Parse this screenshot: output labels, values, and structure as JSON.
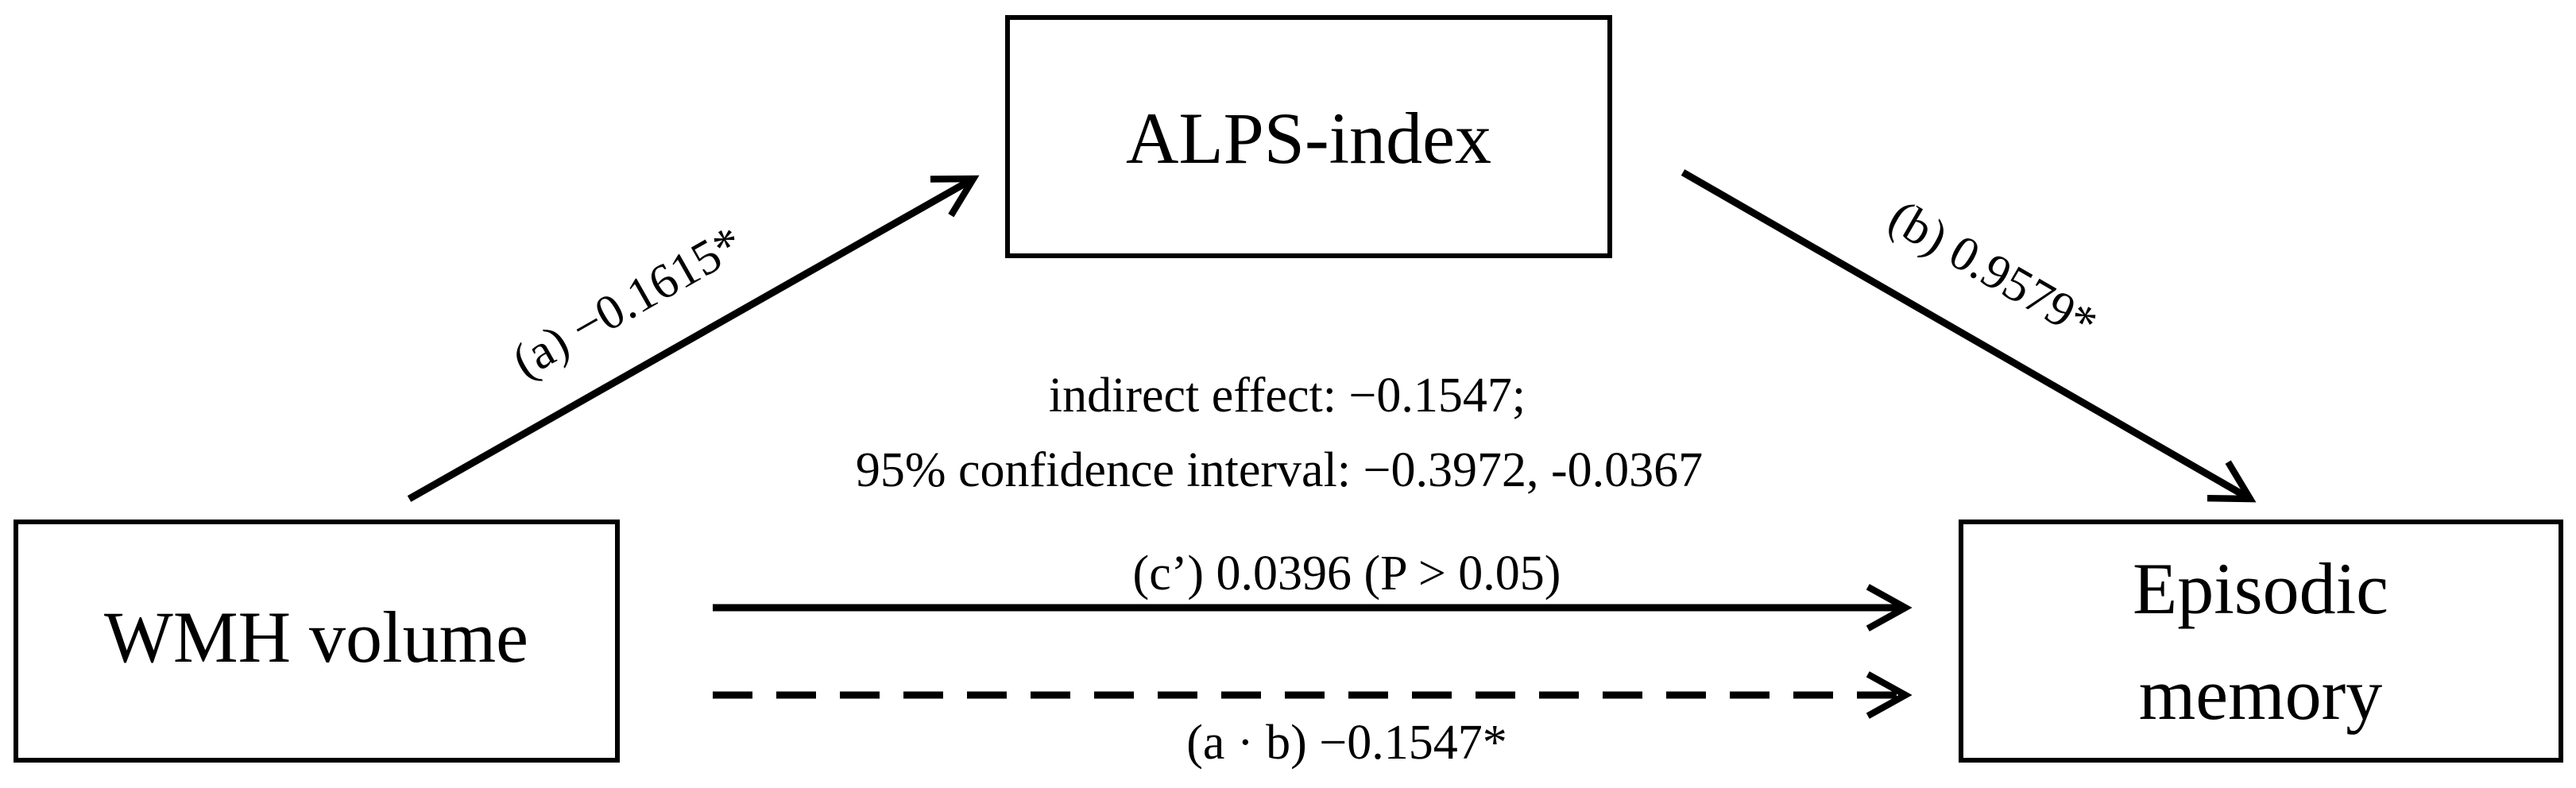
{
  "nodes": {
    "mediator": {
      "label": "ALPS-index"
    },
    "predictor": {
      "label": "WMH volume"
    },
    "outcome": {
      "line1": "Episodic",
      "line2": "memory"
    }
  },
  "edges": {
    "path_a": {
      "label": "(a) −0.1615*"
    },
    "path_b": {
      "label": "(b) 0.9579*"
    },
    "direct_c": {
      "label": "(c’) 0.0396 (P > 0.05)"
    },
    "indirect_ab": {
      "label": "(a · b) −0.1547*"
    }
  },
  "summary": {
    "line1": "indirect effect: −0.1547;",
    "line2": "95% confidence interval: −0.3972, -0.0367"
  },
  "colors": {
    "stroke": "#000000",
    "background": "#ffffff"
  }
}
